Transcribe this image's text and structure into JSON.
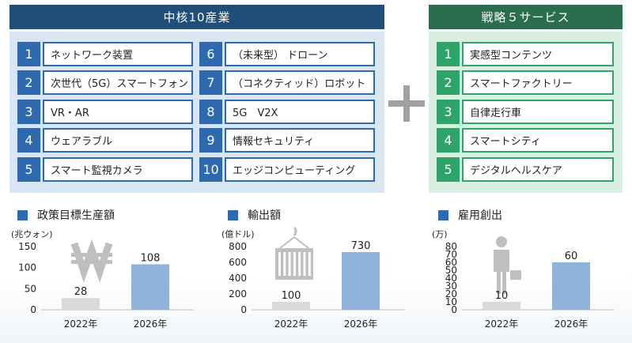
{
  "core": {
    "title": "中核10産業",
    "items": [
      {
        "num": "1",
        "label": "ネットワーク装置"
      },
      {
        "num": "2",
        "label": "次世代（5G）スマートフォン"
      },
      {
        "num": "3",
        "label": "VR・AR"
      },
      {
        "num": "4",
        "label": "ウェアラブル"
      },
      {
        "num": "5",
        "label": "スマート監視カメラ"
      },
      {
        "num": "6",
        "label": "（未来型） ドローン"
      },
      {
        "num": "7",
        "label": "（コネクティッド）ロボット"
      },
      {
        "num": "8",
        "label": "5G　V2X"
      },
      {
        "num": "9",
        "label": "情報セキュリティ"
      },
      {
        "num": "10",
        "label": "エッジコンピューティング"
      }
    ]
  },
  "strategy": {
    "title": "戦略５サービス",
    "items": [
      {
        "num": "1",
        "label": "実感型コンテンツ"
      },
      {
        "num": "2",
        "label": "スマートファクトリー"
      },
      {
        "num": "3",
        "label": "自律走行車"
      },
      {
        "num": "4",
        "label": "スマートシティ"
      },
      {
        "num": "5",
        "label": "デジタルヘルスケア"
      }
    ]
  },
  "colors": {
    "core_accent": "#2e6aad",
    "strategy_accent": "#2fa46a",
    "bar_2022": "#d9d9d9",
    "bar_2026": "#8fb4d9"
  },
  "chart_data": [
    {
      "type": "bar",
      "title": "政策目標生産額",
      "unit": "(兆ウォン)",
      "icon": "won-sign-icon",
      "categories": [
        "2022年",
        "2026年"
      ],
      "values": [
        28,
        108
      ],
      "ylim": [
        0,
        150
      ],
      "yticks": [
        0,
        50,
        100,
        150
      ]
    },
    {
      "type": "bar",
      "title": "輸出額",
      "unit": "(億ドル)",
      "icon": "container-crane-icon",
      "categories": [
        "2022年",
        "2026年"
      ],
      "values": [
        100,
        730
      ],
      "ylim": [
        0,
        800
      ],
      "yticks": [
        0,
        200,
        400,
        600,
        800
      ]
    },
    {
      "type": "bar",
      "title": "雇用創出",
      "unit": "(万)",
      "icon": "businessman-icon",
      "categories": [
        "2022年",
        "2026年"
      ],
      "values": [
        10,
        60
      ],
      "ylim": [
        0,
        80
      ],
      "yticks": [
        0,
        10,
        20,
        30,
        40,
        50,
        60,
        70,
        80
      ]
    }
  ]
}
